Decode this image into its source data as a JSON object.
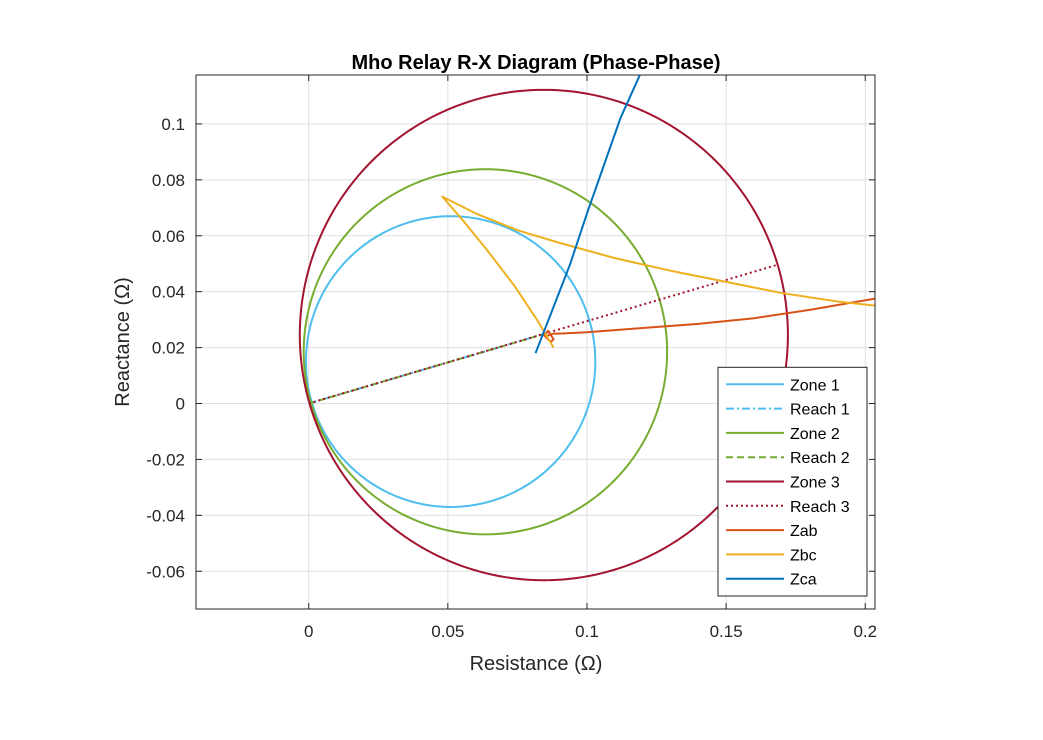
{
  "chart_data": {
    "type": "line",
    "title": "Mho Relay R-X Diagram (Phase-Phase)",
    "xlabel": "Resistance (Ω)",
    "ylabel": "Reactance (Ω)",
    "xlim": [
      -0.0405,
      0.2035
    ],
    "ylim": [
      -0.0735,
      0.1175
    ],
    "xticks": [
      0,
      0.05,
      0.1,
      0.15,
      0.2
    ],
    "xtick_labels": [
      "0",
      "0.05",
      "0.1",
      "0.15",
      "0.2"
    ],
    "yticks": [
      -0.06,
      -0.04,
      -0.02,
      0,
      0.02,
      0.04,
      0.06,
      0.08,
      0.1
    ],
    "ytick_labels": [
      "-0.06",
      "-0.04",
      "-0.02",
      "0",
      "0.02",
      "0.04",
      "0.06",
      "0.08",
      "0.1"
    ],
    "grid": true,
    "legend_position": "bottom-right",
    "series": [
      {
        "name": "Zone 1",
        "kind": "circle",
        "color": "#4DBEEE",
        "dash": "solid",
        "center": [
          0.051,
          0.015
        ],
        "radius": 0.052
      },
      {
        "name": "Reach 1",
        "kind": "line",
        "color": "#4DBEEE",
        "dash": "dashdot",
        "x": [
          0,
          0.085
        ],
        "y": [
          0,
          0.025
        ]
      },
      {
        "name": "Zone 2",
        "kind": "circle",
        "color": "#77AC30",
        "dash": "solid",
        "center": [
          0.0635,
          0.0185
        ],
        "radius": 0.0653
      },
      {
        "name": "Reach 2",
        "kind": "line",
        "color": "#77AC30",
        "dash": "dashed",
        "x": [
          0,
          0.085
        ],
        "y": [
          0,
          0.025
        ]
      },
      {
        "name": "Zone 3",
        "kind": "circle",
        "color": "#A2142F",
        "dash": "solid",
        "center": [
          0.0845,
          0.0245
        ],
        "radius": 0.0877
      },
      {
        "name": "Reach 3",
        "kind": "line",
        "color": "#A2142F",
        "dash": "dotted",
        "x": [
          0,
          0.168
        ],
        "y": [
          0,
          0.0495
        ]
      },
      {
        "name": "Zab",
        "kind": "line",
        "color": "#D95319",
        "dash": "solid",
        "x": [
          0.0845,
          0.086,
          0.088,
          0.087,
          0.085,
          0.088,
          0.09,
          0.1,
          0.12,
          0.14,
          0.16,
          0.18,
          0.2035
        ],
        "y": [
          0.024,
          0.026,
          0.023,
          0.022,
          0.024,
          0.025,
          0.025,
          0.0255,
          0.027,
          0.0285,
          0.0305,
          0.0335,
          0.0375
        ]
      },
      {
        "name": "Zbc",
        "kind": "line",
        "color": "#EDB120",
        "dash": "solid",
        "x": [
          0.088,
          0.082,
          0.074,
          0.064,
          0.055,
          0.048,
          0.06,
          0.075,
          0.09,
          0.11,
          0.13,
          0.15,
          0.17,
          0.19,
          0.2035
        ],
        "y": [
          0.02,
          0.03,
          0.042,
          0.055,
          0.066,
          0.074,
          0.068,
          0.062,
          0.0575,
          0.052,
          0.0475,
          0.0435,
          0.0395,
          0.0365,
          0.035
        ]
      },
      {
        "name": "Zca",
        "kind": "line",
        "color": "#0072BD",
        "dash": "solid",
        "x": [
          0.0815,
          0.087,
          0.094,
          0.1,
          0.106,
          0.112,
          0.119
        ],
        "y": [
          0.018,
          0.032,
          0.05,
          0.068,
          0.085,
          0.102,
          0.1175
        ]
      }
    ]
  }
}
